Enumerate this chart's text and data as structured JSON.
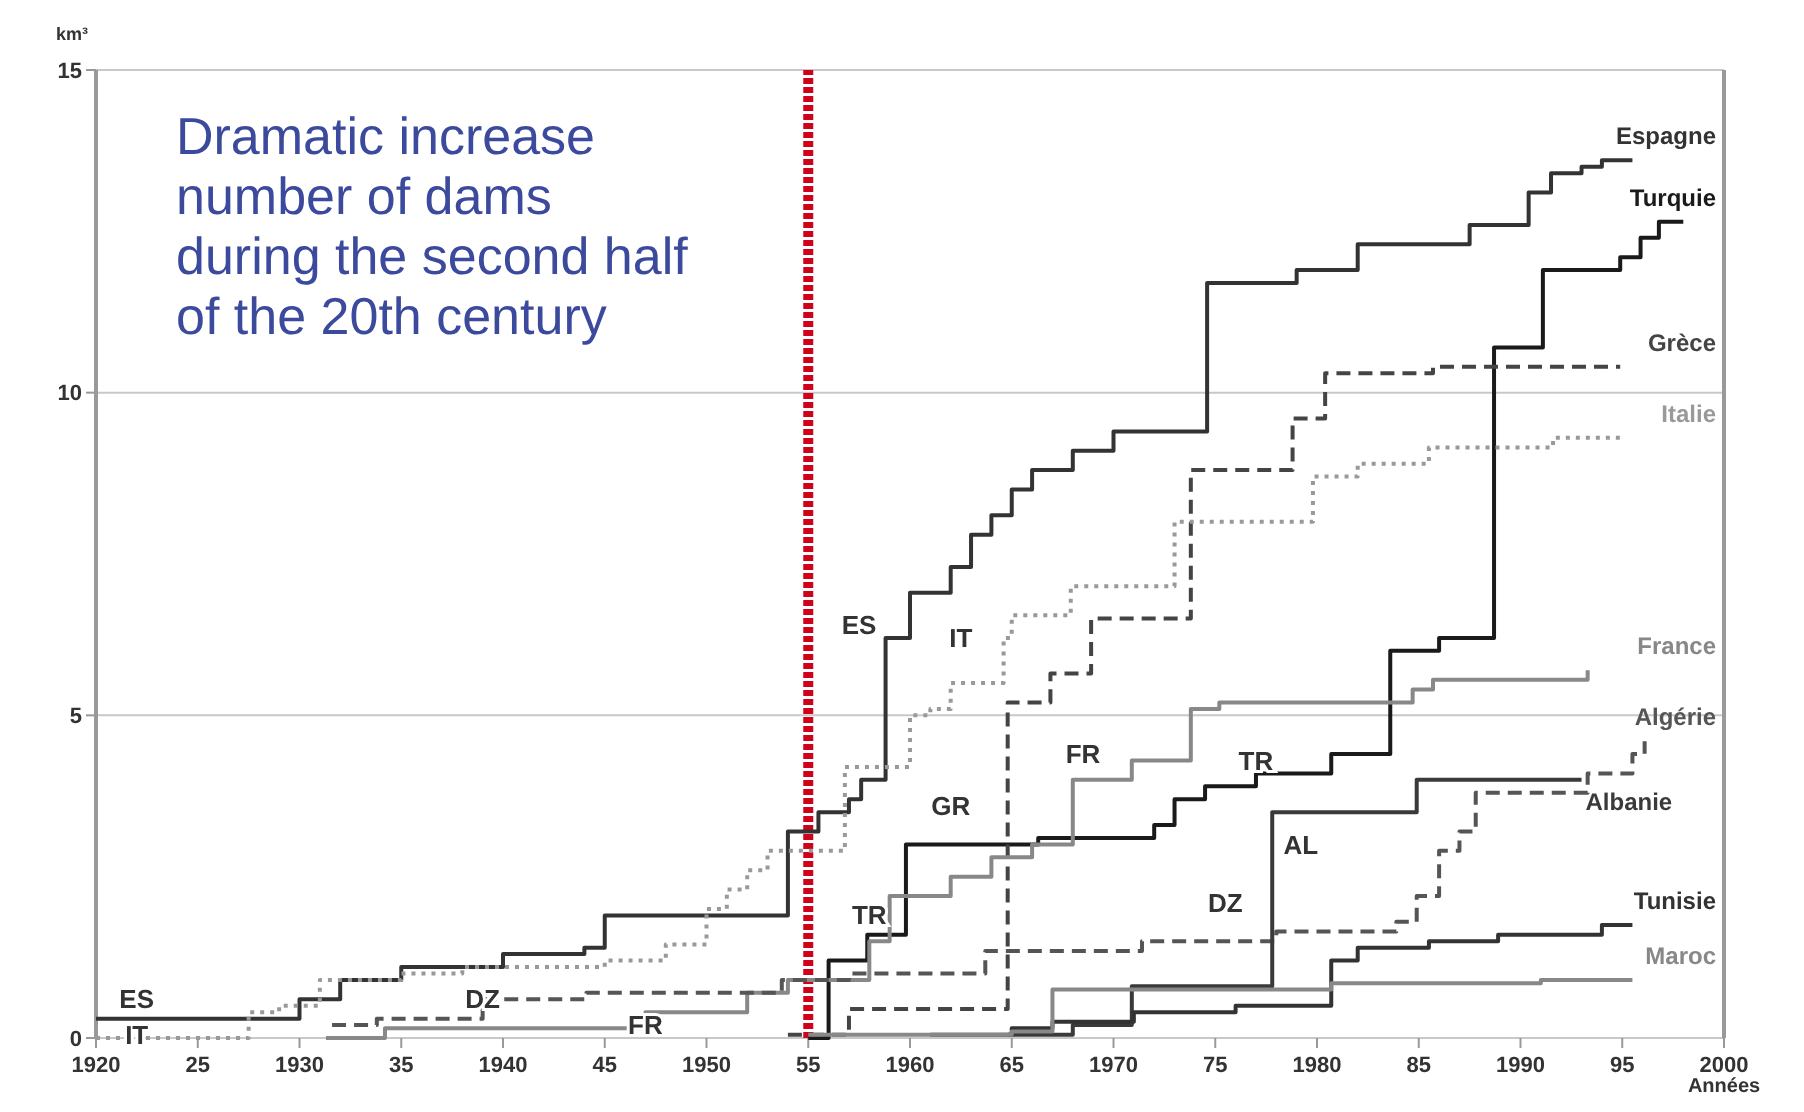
{
  "chart_data": {
    "type": "step",
    "title": "Dramatic increase\nnumber of dams\nduring the second half\nof the 20th century",
    "ylabel": "km³",
    "xlabel": "Années",
    "xlim": [
      1920,
      2000
    ],
    "ylim": [
      0,
      15
    ],
    "xticks": [
      1920,
      {
        "value": 1925,
        "label": "25"
      },
      1930,
      {
        "value": 1935,
        "label": "35"
      },
      1940,
      {
        "value": 1945,
        "label": "45"
      },
      1950,
      {
        "value": 1955,
        "label": "55"
      },
      1960,
      {
        "value": 1965,
        "label": "65"
      },
      1970,
      {
        "value": 1975,
        "label": "75"
      },
      1980,
      {
        "value": 1985,
        "label": "85"
      },
      1990,
      {
        "value": 1995,
        "label": "95"
      },
      2000
    ],
    "yticks": [
      0,
      5,
      10,
      15
    ],
    "grid": "y",
    "series": [
      {
        "name": "Espagne",
        "color": "#333333",
        "line_style": "solid",
        "x": [
          1920,
          1930,
          1932,
          1935,
          1940,
          1944,
          1945,
          1954,
          1955.5,
          1957,
          1957.6,
          1958.8,
          1960,
          1962,
          1963,
          1964,
          1965,
          1966,
          1968,
          1970,
          1974.6,
          1979,
          1982,
          1987.5,
          1990.4,
          1991.5,
          1993,
          1994,
          1995.5
        ],
        "values": [
          0.3,
          0.6,
          0.9,
          1.1,
          1.3,
          1.4,
          1.9,
          3.2,
          3.5,
          3.7,
          4.0,
          6.2,
          6.9,
          7.3,
          7.8,
          8.1,
          8.5,
          8.8,
          9.1,
          9.4,
          11.7,
          11.9,
          12.3,
          12.6,
          13.1,
          13.4,
          13.5,
          13.6,
          13.6
        ]
      },
      {
        "name": "Turquie",
        "color": "#1a1a1a",
        "line_style": "solid",
        "x": [
          1955,
          1956,
          1957.9,
          1959.8,
          1966.3,
          1972,
          1973,
          1974.5,
          1977,
          1980.7,
          1983.6,
          1986,
          1988.7,
          1991.1,
          1994.9,
          1995.9,
          1996.8,
          1998
        ],
        "values": [
          0,
          1.2,
          1.6,
          3.0,
          3.1,
          3.3,
          3.7,
          3.9,
          4.1,
          4.4,
          6.0,
          6.2,
          10.7,
          11.9,
          12.1,
          12.4,
          12.65,
          12.65
        ]
      },
      {
        "name": "Grèce",
        "color": "#444444",
        "line_style": "dashed",
        "x": [
          1954,
          1957,
          1964.8,
          1966.9,
          1968.9,
          1973.8,
          1978.8,
          1980.4,
          1985.7,
          1994.9
        ],
        "values": [
          0.05,
          0.45,
          5.2,
          5.65,
          6.5,
          8.8,
          9.6,
          10.3,
          10.4,
          10.4
        ]
      },
      {
        "name": "Italie",
        "color": "#999999",
        "line_style": "dotted",
        "x": [
          1920,
          1927.5,
          1929,
          1931,
          1935,
          1938,
          1945,
          1948,
          1950,
          1951,
          1952,
          1953,
          1956.8,
          1960,
          1961,
          1962,
          1964.6,
          1965,
          1967.9,
          1973,
          1979.8,
          1982,
          1985.5,
          1991.6,
          1994.9
        ],
        "values": [
          0,
          0.4,
          0.5,
          0.9,
          1.0,
          1.1,
          1.2,
          1.45,
          2.0,
          2.3,
          2.6,
          2.9,
          4.2,
          5.0,
          5.1,
          5.5,
          6.2,
          6.55,
          7.0,
          8.0,
          8.7,
          8.9,
          9.15,
          9.3,
          9.3
        ]
      },
      {
        "name": "France",
        "color": "#888888",
        "line_style": "solid",
        "x": [
          1931.3,
          1934.2,
          1947,
          1952,
          1954,
          1958,
          1959,
          1962,
          1964,
          1966,
          1968,
          1970.9,
          1973.8,
          1975.2,
          1984.7,
          1985.7,
          1993.3
        ],
        "values": [
          0,
          0.15,
          0.4,
          0.7,
          0.9,
          1.5,
          2.2,
          2.5,
          2.8,
          3.0,
          4.0,
          4.3,
          5.1,
          5.2,
          5.4,
          5.55,
          5.7
        ]
      },
      {
        "name": "Algérie",
        "color": "#555555",
        "line_style": "dashed",
        "x": [
          1931.6,
          1933.8,
          1939,
          1944.1,
          1953.7,
          1957,
          1963.7,
          1971.4,
          1978,
          1983.9,
          1984.9,
          1986,
          1987,
          1987.8,
          1993.3,
          1995.5,
          1996.1
        ],
        "values": [
          0.2,
          0.3,
          0.6,
          0.7,
          0.9,
          1.0,
          1.35,
          1.5,
          1.65,
          1.8,
          2.2,
          2.9,
          3.2,
          3.8,
          4.1,
          4.4,
          4.6
        ]
      },
      {
        "name": "Albanie",
        "color": "#3a3a3a",
        "line_style": "solid",
        "x": [
          1964.8,
          1968,
          1970.9,
          1977.8,
          1984.9,
          1993
        ],
        "values": [
          0.05,
          0.2,
          0.8,
          3.5,
          4.0,
          4.0
        ]
      },
      {
        "name": "Tunisie",
        "color": "#333333",
        "line_style": "solid",
        "x": [
          1961,
          1965,
          1967,
          1971,
          1976,
          1980.7,
          1982,
          1985.5,
          1988.9,
          1994,
          1995.5
        ],
        "values": [
          0.05,
          0.15,
          0.25,
          0.4,
          0.5,
          1.2,
          1.4,
          1.5,
          1.6,
          1.75,
          1.75
        ]
      },
      {
        "name": "Maroc",
        "color": "#888888",
        "line_style": "solid",
        "x": [
          1955,
          1965,
          1967,
          1980.7,
          1991,
          1995.5
        ],
        "values": [
          0.05,
          0.1,
          0.75,
          0.85,
          0.9,
          0.9
        ]
      }
    ],
    "ref_lines": [
      {
        "axis": "x",
        "value": 1955,
        "color": "#d0021b",
        "line_style": "dashed"
      }
    ],
    "annotations": [
      "ES",
      "IT",
      "DZ",
      "FR",
      "TR",
      "ES",
      "IT",
      "GR",
      "FR",
      "TR",
      "AL",
      "DZ"
    ]
  }
}
